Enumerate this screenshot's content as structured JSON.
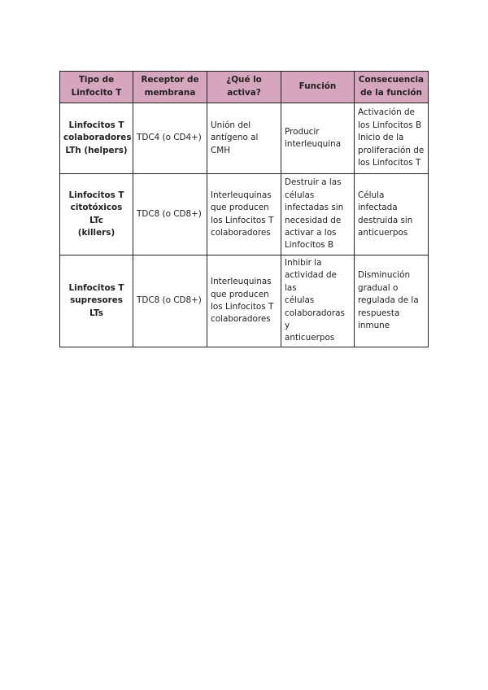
{
  "header_color": "#d5a6bd",
  "table": {
    "headers": [
      "Tipo de\nLinfocito T",
      "Receptor de\nmembrana",
      "¿Qué lo\nactiva?",
      "Función",
      "Consecuencia\nde la función"
    ],
    "rows": [
      [
        "Linfocitos T\ncolaboradores\nLTh (helpers)",
        "TDC4 (o CD4+)",
        "Unión del\nantígeno al\nCMH",
        "Producir\ninterleuquina",
        "Activación de\nlos Linfocitos B\nInicio de la\nproliferación de\nlos Linfocitos T"
      ],
      [
        "Linfocitos T\ncitotóxicos LTc\n(killers)",
        "TDC8 (o CD8+)",
        "Interleuquinas\nque producen\nlos Linfocitos T\ncolaboradores",
        "Destruir a las\ncélulas\ninfectadas sin\nnecesidad de\nactivar a los\nLinfocitos B",
        "Célula infectada\ndestruida sin\nanticuerpos"
      ],
      [
        "Linfocitos T\nsupresores LTs",
        "TDC8 (o CD8+)",
        "Interleuquinas\nque producen\nlos Linfocitos T\ncolaboradores",
        "Inhibir la\nactividad de las\ncélulas\ncolaboradoras y\nanticuerpos",
        "Disminución\ngradual o\nregulada de la\nrespuesta\ninmune"
      ]
    ]
  }
}
